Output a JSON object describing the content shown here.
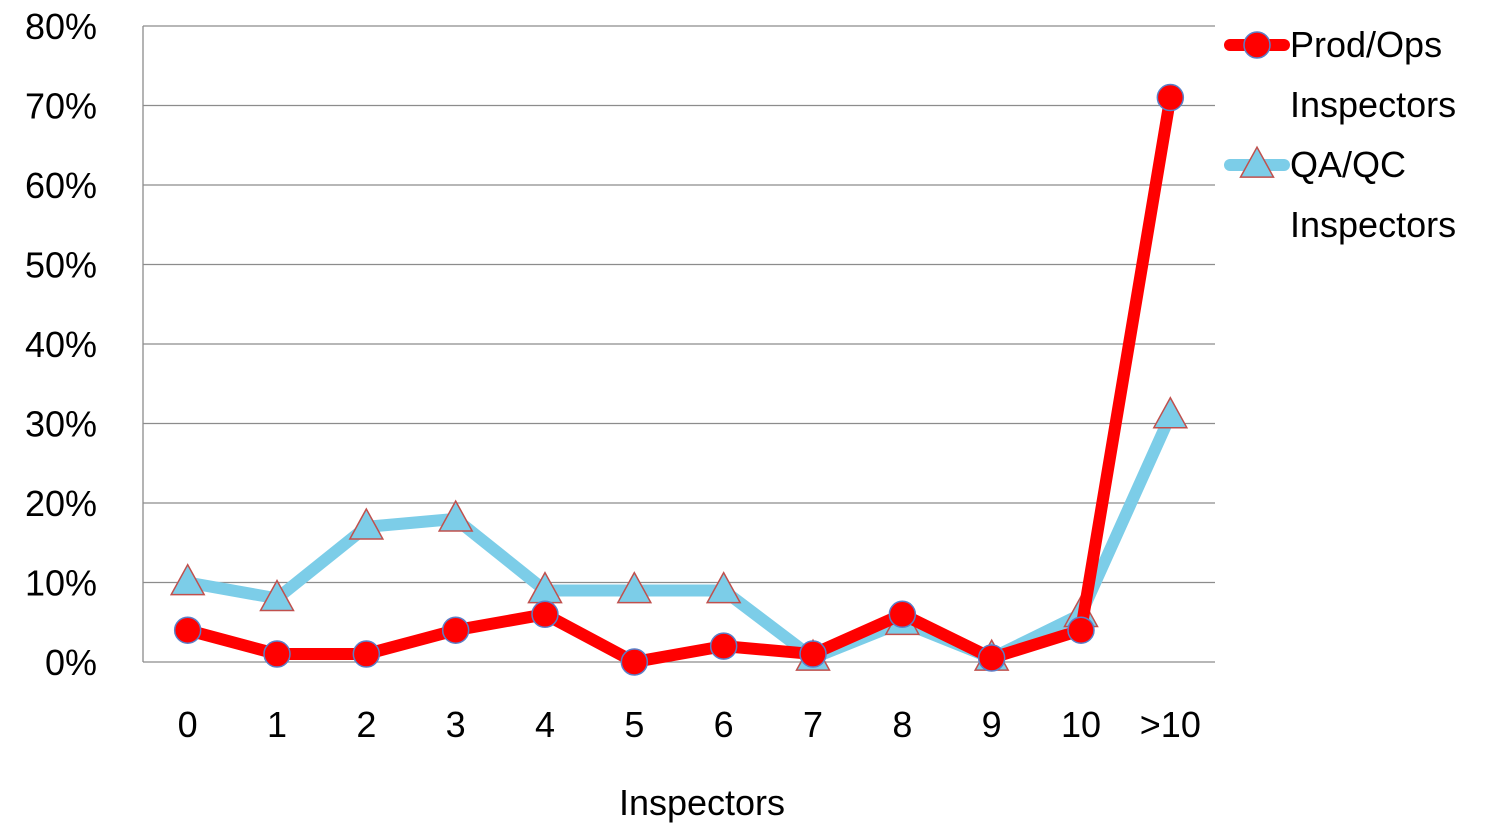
{
  "chart_data": {
    "type": "line",
    "title": "",
    "xlabel": "Inspectors",
    "ylabel": "",
    "categories": [
      "0",
      "1",
      "2",
      "3",
      "4",
      "5",
      "6",
      "7",
      "8",
      "9",
      "10",
      ">10"
    ],
    "ylim": [
      0,
      80
    ],
    "yticks": [
      "0%",
      "10%",
      "20%",
      "30%",
      "40%",
      "50%",
      "60%",
      "70%",
      "80%"
    ],
    "grid": true,
    "legend_position": "right",
    "series": [
      {
        "name_lines": [
          "Prod/Ops",
          "Inspectors"
        ],
        "color": "#ff0000",
        "marker": "circle",
        "values": [
          4,
          1,
          1,
          4,
          6,
          0,
          2,
          1,
          6,
          0.5,
          4,
          71
        ]
      },
      {
        "name_lines": [
          "QA/QC",
          "Inspectors"
        ],
        "color": "#7ccde8",
        "marker": "triangle",
        "values": [
          10,
          8,
          17,
          18,
          9,
          9,
          9,
          0.5,
          5,
          0.5,
          6,
          31
        ]
      }
    ]
  }
}
